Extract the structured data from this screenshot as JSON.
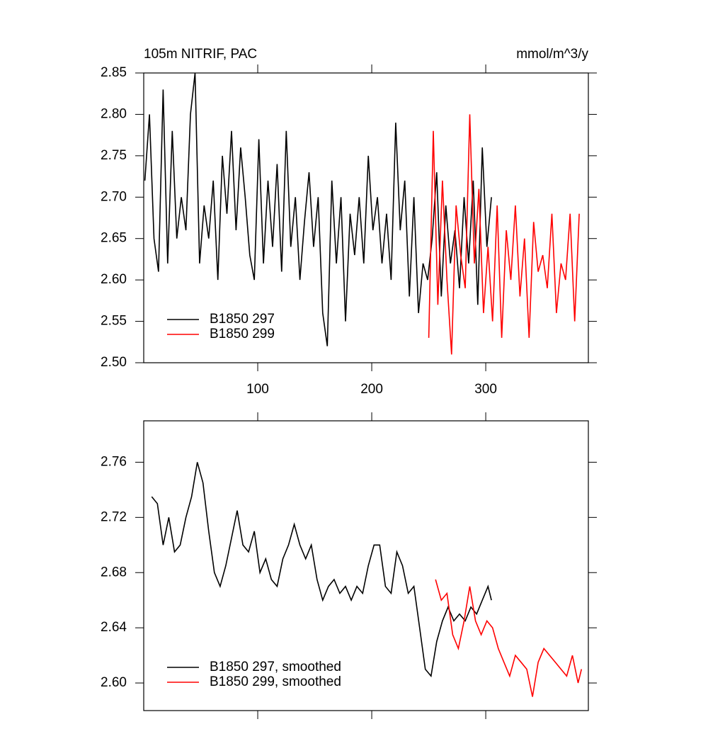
{
  "chart_data": [
    {
      "type": "line",
      "title": "105m NITRIF, PAC",
      "units_label": "mmol/m^3/y",
      "xlim": [
        0,
        390
      ],
      "xticks": [
        100,
        200,
        300
      ],
      "ylim": [
        2.5,
        2.85
      ],
      "yticks": [
        {
          "value": 2.5,
          "label": "2.50"
        },
        2.55,
        {
          "value": 2.6,
          "label": "2.60"
        },
        2.65,
        {
          "value": 2.7,
          "label": "2.70"
        },
        2.75,
        {
          "value": 2.8,
          "label": "2.80"
        },
        2.85
      ],
      "legend": "lower left",
      "series": [
        {
          "name": "B1850 297",
          "color": "#000000",
          "x": [
            1,
            5,
            9,
            13,
            17,
            21,
            25,
            29,
            33,
            37,
            41,
            45,
            49,
            53,
            57,
            61,
            65,
            69,
            73,
            77,
            81,
            85,
            89,
            93,
            97,
            101,
            105,
            109,
            113,
            117,
            121,
            125,
            129,
            133,
            137,
            141,
            145,
            149,
            153,
            157,
            161,
            165,
            169,
            173,
            177,
            181,
            185,
            189,
            193,
            197,
            201,
            205,
            209,
            213,
            217,
            221,
            225,
            229,
            233,
            237,
            241,
            245,
            249,
            253,
            257,
            261,
            265,
            269,
            273,
            277,
            281,
            285,
            289,
            293,
            297,
            301,
            305
          ],
          "values": [
            2.72,
            2.8,
            2.65,
            2.61,
            2.83,
            2.62,
            2.78,
            2.65,
            2.7,
            2.66,
            2.8,
            2.85,
            2.62,
            2.69,
            2.65,
            2.72,
            2.6,
            2.75,
            2.68,
            2.78,
            2.66,
            2.76,
            2.7,
            2.63,
            2.6,
            2.77,
            2.62,
            2.72,
            2.64,
            2.74,
            2.61,
            2.78,
            2.64,
            2.7,
            2.6,
            2.67,
            2.73,
            2.64,
            2.7,
            2.56,
            2.52,
            2.72,
            2.62,
            2.7,
            2.55,
            2.68,
            2.63,
            2.7,
            2.62,
            2.75,
            2.66,
            2.7,
            2.62,
            2.68,
            2.6,
            2.79,
            2.66,
            2.72,
            2.58,
            2.7,
            2.56,
            2.62,
            2.6,
            2.65,
            2.73,
            2.58,
            2.69,
            2.62,
            2.66,
            2.59,
            2.7,
            2.62,
            2.72,
            2.57,
            2.76,
            2.64,
            2.7
          ]
        },
        {
          "name": "B1850 299",
          "color": "#ff0000",
          "x": [
            250,
            254,
            258,
            262,
            266,
            270,
            274,
            278,
            282,
            286,
            290,
            294,
            298,
            302,
            306,
            310,
            314,
            318,
            322,
            326,
            330,
            334,
            338,
            342,
            346,
            350,
            354,
            358,
            362,
            366,
            370,
            374,
            378,
            382
          ],
          "values": [
            2.53,
            2.78,
            2.57,
            2.72,
            2.6,
            2.51,
            2.69,
            2.63,
            2.59,
            2.8,
            2.62,
            2.71,
            2.56,
            2.64,
            2.55,
            2.69,
            2.53,
            2.66,
            2.6,
            2.69,
            2.58,
            2.65,
            2.53,
            2.67,
            2.61,
            2.63,
            2.59,
            2.68,
            2.56,
            2.62,
            2.6,
            2.68,
            2.55,
            2.68
          ]
        }
      ]
    },
    {
      "type": "line",
      "xlim": [
        0,
        390
      ],
      "xticks": [
        100,
        200,
        300
      ],
      "ylim": [
        2.58,
        2.79
      ],
      "yticks": [
        {
          "value": 2.6,
          "label": "2.60"
        },
        2.64,
        2.68,
        2.72,
        2.76
      ],
      "legend": "lower left",
      "series": [
        {
          "name": "B1850 297, smoothed",
          "color": "#000000",
          "x": [
            7,
            12,
            17,
            22,
            27,
            32,
            37,
            42,
            47,
            52,
            57,
            62,
            67,
            72,
            77,
            82,
            87,
            92,
            97,
            102,
            107,
            112,
            117,
            122,
            127,
            132,
            137,
            142,
            147,
            152,
            157,
            162,
            167,
            172,
            177,
            182,
            187,
            192,
            197,
            202,
            207,
            212,
            217,
            222,
            227,
            232,
            237,
            242,
            247,
            252,
            257,
            262,
            267,
            272,
            277,
            282,
            287,
            292,
            297,
            302,
            305
          ],
          "values": [
            2.735,
            2.73,
            2.7,
            2.72,
            2.695,
            2.7,
            2.72,
            2.735,
            2.76,
            2.745,
            2.71,
            2.68,
            2.67,
            2.685,
            2.705,
            2.725,
            2.7,
            2.695,
            2.71,
            2.68,
            2.69,
            2.675,
            2.67,
            2.69,
            2.7,
            2.715,
            2.7,
            2.69,
            2.7,
            2.675,
            2.66,
            2.67,
            2.675,
            2.665,
            2.67,
            2.66,
            2.67,
            2.665,
            2.685,
            2.7,
            2.7,
            2.67,
            2.665,
            2.695,
            2.685,
            2.665,
            2.67,
            2.64,
            2.61,
            2.605,
            2.63,
            2.645,
            2.655,
            2.645,
            2.65,
            2.645,
            2.655,
            2.65,
            2.66,
            2.67,
            2.66
          ]
        },
        {
          "name": "B1850 299, smoothed",
          "color": "#ff0000",
          "x": [
            256,
            261,
            266,
            271,
            276,
            281,
            286,
            291,
            296,
            301,
            306,
            311,
            316,
            321,
            326,
            331,
            336,
            341,
            346,
            351,
            356,
            361,
            366,
            371,
            376,
            381,
            384
          ],
          "values": [
            2.675,
            2.66,
            2.665,
            2.635,
            2.625,
            2.645,
            2.67,
            2.645,
            2.635,
            2.645,
            2.64,
            2.625,
            2.615,
            2.605,
            2.62,
            2.615,
            2.61,
            2.59,
            2.615,
            2.625,
            2.62,
            2.615,
            2.61,
            2.605,
            2.62,
            2.6,
            2.61
          ]
        }
      ]
    }
  ]
}
